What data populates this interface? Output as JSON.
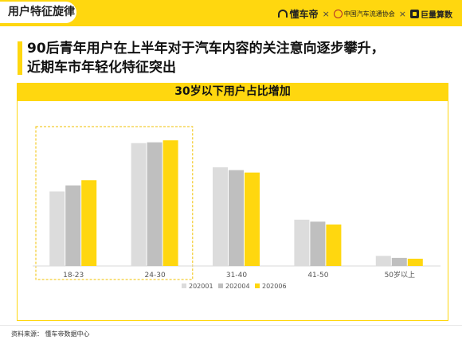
{
  "header": {
    "section_label": "用户特征旋律",
    "logos": {
      "brand": "懂车帝",
      "separator": "×",
      "partner_1": "中国汽车流通协会",
      "partner_2": "巨量算数"
    }
  },
  "headline": {
    "line_1": "90后青年用户在上半年对于汽车内容的关注意向逐步攀升，",
    "line_2": "近期车市年轻化特征突出"
  },
  "subtitle": "30岁以下用户占比增加",
  "colors": {
    "brand_yellow": "#ffd70f",
    "series_202001": "#dcdcdc",
    "series_202004": "#bfbfbf",
    "series_202006": "#ffd70f"
  },
  "chart_data": {
    "type": "bar",
    "categories": [
      "18-23",
      "24-30",
      "31-40",
      "41-50",
      "50岁以上"
    ],
    "series": [
      {
        "name": "202001",
        "values": [
          18.5,
          30.5,
          24.5,
          11.5,
          2.5
        ]
      },
      {
        "name": "202004",
        "values": [
          20.0,
          30.7,
          23.8,
          11.0,
          2.0
        ]
      },
      {
        "name": "202006",
        "values": [
          21.3,
          31.2,
          23.2,
          10.3,
          1.8
        ]
      }
    ],
    "ylim": [
      0,
      35
    ],
    "highlighted_categories": [
      "18-23",
      "24-30"
    ],
    "grid": false,
    "legend_position": "bottom"
  },
  "footer": {
    "source": "资料来源： 懂车帝数据中心"
  }
}
